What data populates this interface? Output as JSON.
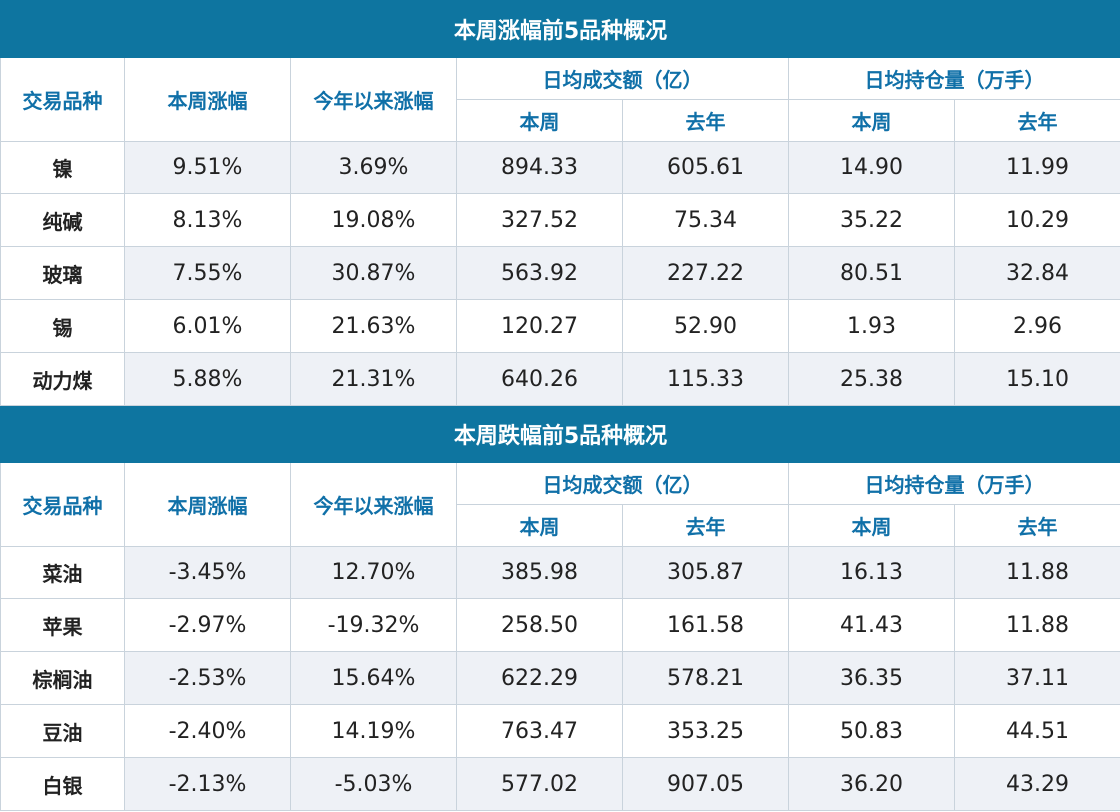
{
  "colors": {
    "title_bg": "#0e75a0",
    "header_text": "#1070a8",
    "shade_bg": "#eef1f6",
    "border": "#c9d3dc"
  },
  "headers": {
    "variety": "交易品种",
    "weekly_change": "本周涨幅",
    "ytd_change": "今年以来涨幅",
    "avg_turnover": "日均成交额（亿）",
    "avg_oi": "日均持仓量（万手）",
    "this_week": "本周",
    "last_year": "去年"
  },
  "gainers": {
    "title": "本周涨幅前5品种概况",
    "rows": [
      [
        "镍",
        "9.51%",
        "3.69%",
        "894.33",
        "605.61",
        "14.90",
        "11.99"
      ],
      [
        "纯碱",
        "8.13%",
        "19.08%",
        "327.52",
        "75.34",
        "35.22",
        "10.29"
      ],
      [
        "玻璃",
        "7.55%",
        "30.87%",
        "563.92",
        "227.22",
        "80.51",
        "32.84"
      ],
      [
        "锡",
        "6.01%",
        "21.63%",
        "120.27",
        "52.90",
        "1.93",
        "2.96"
      ],
      [
        "动力煤",
        "5.88%",
        "21.31%",
        "640.26",
        "115.33",
        "25.38",
        "15.10"
      ]
    ]
  },
  "losers": {
    "title": "本周跌幅前5品种概况",
    "rows": [
      [
        "菜油",
        "-3.45%",
        "12.70%",
        "385.98",
        "305.87",
        "16.13",
        "11.88"
      ],
      [
        "苹果",
        "-2.97%",
        "-19.32%",
        "258.50",
        "161.58",
        "41.43",
        "11.88"
      ],
      [
        "棕榈油",
        "-2.53%",
        "15.64%",
        "622.29",
        "578.21",
        "36.35",
        "37.11"
      ],
      [
        "豆油",
        "-2.40%",
        "14.19%",
        "763.47",
        "353.25",
        "50.83",
        "44.51"
      ],
      [
        "白银",
        "-2.13%",
        "-5.03%",
        "577.02",
        "907.05",
        "36.20",
        "43.29"
      ]
    ]
  }
}
